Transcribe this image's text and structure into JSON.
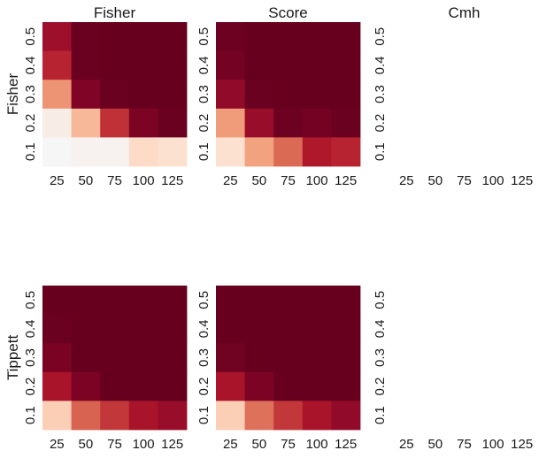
{
  "chart_data": {
    "type": "heatmap",
    "x_ticks": [
      "25",
      "50",
      "75",
      "100",
      "125"
    ],
    "y_ticks": [
      "0.5",
      "0.4",
      "0.3",
      "0.2",
      "0.1"
    ],
    "value_range": [
      0,
      1
    ],
    "colormap": "RdBu (red half): light = low, dark red = high",
    "panels": [
      {
        "title": "Fisher",
        "row_label": "Fisher",
        "values": [
          [
            0.82,
            0.99,
            1.0,
            1.0,
            1.0
          ],
          [
            0.72,
            0.99,
            1.0,
            1.0,
            1.0
          ],
          [
            0.4,
            0.92,
            0.99,
            1.0,
            1.0
          ],
          [
            0.05,
            0.28,
            0.68,
            0.93,
            0.99
          ],
          [
            0.0,
            0.02,
            0.02,
            0.15,
            0.12
          ]
        ]
      },
      {
        "title": "Score",
        "row_label": "",
        "values": [
          [
            0.98,
            1.0,
            1.0,
            1.0,
            1.0
          ],
          [
            0.96,
            1.0,
            1.0,
            1.0,
            1.0
          ],
          [
            0.86,
            0.99,
            1.0,
            1.0,
            1.0
          ],
          [
            0.38,
            0.84,
            0.98,
            0.96,
            0.99
          ],
          [
            0.12,
            0.36,
            0.52,
            0.76,
            0.72
          ]
        ]
      },
      {
        "title": "Cmh",
        "row_label": "",
        "values": null
      },
      {
        "title": "",
        "row_label": "Tippett",
        "values": [
          [
            1.0,
            1.0,
            1.0,
            1.0,
            1.0
          ],
          [
            0.99,
            1.0,
            1.0,
            1.0,
            1.0
          ],
          [
            0.94,
            1.0,
            1.0,
            1.0,
            1.0
          ],
          [
            0.78,
            0.93,
            1.0,
            1.0,
            1.0
          ],
          [
            0.2,
            0.54,
            0.66,
            0.78,
            0.84
          ]
        ]
      },
      {
        "title": "",
        "row_label": "",
        "values": [
          [
            1.0,
            1.0,
            1.0,
            1.0,
            1.0
          ],
          [
            1.0,
            1.0,
            1.0,
            1.0,
            1.0
          ],
          [
            0.97,
            1.0,
            1.0,
            1.0,
            1.0
          ],
          [
            0.78,
            0.93,
            1.0,
            1.0,
            1.0
          ],
          [
            0.2,
            0.5,
            0.66,
            0.78,
            0.86
          ]
        ]
      },
      {
        "title": "",
        "row_label": "",
        "values": null
      }
    ]
  }
}
